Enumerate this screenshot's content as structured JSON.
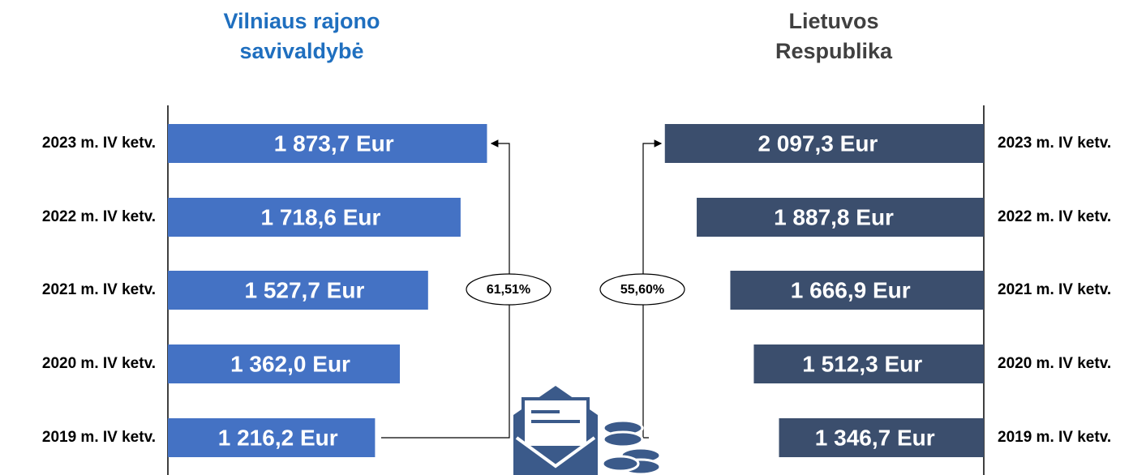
{
  "chart_data": [
    {
      "type": "bar",
      "orientation": "horizontal",
      "title": "Vilniaus rajono savivaldybė",
      "categories": [
        "2023 m. IV ketv.",
        "2022 m. IV ketv.",
        "2021 m. IV ketv.",
        "2020 m. IV ketv.",
        "2019 m. IV ketv."
      ],
      "values": [
        1873.7,
        1718.6,
        1527.7,
        1362.0,
        1216.2
      ],
      "value_labels": [
        "1 873,7 Eur",
        "1 718,6 Eur",
        "1 527,7 Eur",
        "1 362,0 Eur",
        "1 216,2 Eur"
      ],
      "color": "#4472c4",
      "title_color": "#1f6fbf",
      "xlim": [
        0,
        2000
      ],
      "annotation": "61,51%"
    },
    {
      "type": "bar",
      "orientation": "horizontal",
      "title": "Lietuvos Respublika",
      "categories": [
        "2023 m. IV ketv.",
        "2022 m. IV ketv.",
        "2021 m. IV ketv.",
        "2020 m. IV ketv.",
        "2019 m. IV ketv."
      ],
      "values": [
        2097.3,
        1887.8,
        1666.9,
        1512.3,
        1346.7
      ],
      "value_labels": [
        "2 097,3 Eur",
        "1 887,8 Eur",
        "1 666,9 Eur",
        "1 512,3 Eur",
        "1 346,7 Eur"
      ],
      "color": "#3b4e6d",
      "title_color": "#404040",
      "xlim": [
        0,
        2240
      ],
      "annotation": "55,60%"
    }
  ]
}
